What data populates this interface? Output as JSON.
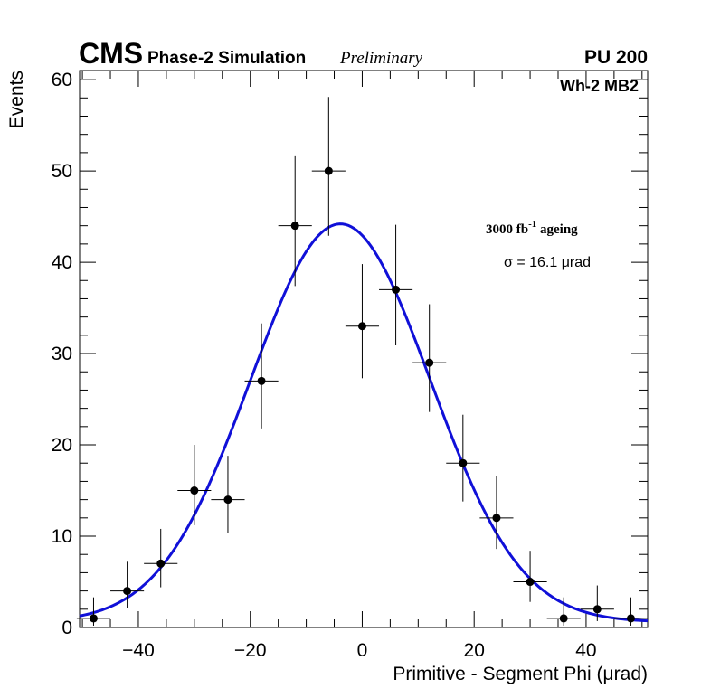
{
  "header": {
    "experiment": "CMS",
    "simulation": "Phase-2 Simulation",
    "status": "Preliminary",
    "pileup": "PU 200"
  },
  "legend": {
    "station": "Wh-2 MB2",
    "ageing_prefix": "3000 fb",
    "ageing_exp": "-1",
    "ageing_suffix": " ageing",
    "sigma_label": "σ = 16.1 μrad"
  },
  "colors": {
    "fit": "#1010d8",
    "points": "#000000"
  },
  "chart_data": {
    "type": "scatter",
    "title": "",
    "xlabel": "Primitive - Segment Phi (μrad)",
    "ylabel": "Events",
    "xlim": [
      -50.5,
      51
    ],
    "ylim": [
      0,
      61
    ],
    "x_ticks": [
      -40,
      -20,
      0,
      20,
      40
    ],
    "x_tick_labels": [
      "−40",
      "−20",
      "0",
      "20",
      "40"
    ],
    "y_ticks": [
      0,
      10,
      20,
      30,
      40,
      50,
      60
    ],
    "y_tick_labels": [
      "0",
      "10",
      "20",
      "30",
      "40",
      "50",
      "60"
    ],
    "bin_half_width": 3,
    "series": [
      {
        "name": "Events",
        "points": [
          {
            "x": -48,
            "y": 1,
            "err_lo": 0.8,
            "err_hi": 2.3
          },
          {
            "x": -42,
            "y": 4,
            "err_lo": 1.9,
            "err_hi": 3.2
          },
          {
            "x": -36,
            "y": 7,
            "err_lo": 2.6,
            "err_hi": 3.8
          },
          {
            "x": -30,
            "y": 15,
            "err_lo": 3.8,
            "err_hi": 5.0
          },
          {
            "x": -24,
            "y": 14,
            "err_lo": 3.7,
            "err_hi": 4.8
          },
          {
            "x": -18,
            "y": 27,
            "err_lo": 5.2,
            "err_hi": 6.3
          },
          {
            "x": -12,
            "y": 44,
            "err_lo": 6.6,
            "err_hi": 7.7
          },
          {
            "x": -6,
            "y": 50,
            "err_lo": 7.1,
            "err_hi": 8.1
          },
          {
            "x": 0,
            "y": 33,
            "err_lo": 5.7,
            "err_hi": 6.8
          },
          {
            "x": 6,
            "y": 37,
            "err_lo": 6.1,
            "err_hi": 7.1
          },
          {
            "x": 12,
            "y": 29,
            "err_lo": 5.4,
            "err_hi": 6.4
          },
          {
            "x": 18,
            "y": 18,
            "err_lo": 4.2,
            "err_hi": 5.3
          },
          {
            "x": 24,
            "y": 12,
            "err_lo": 3.4,
            "err_hi": 4.6
          },
          {
            "x": 30,
            "y": 5,
            "err_lo": 2.2,
            "err_hi": 3.4
          },
          {
            "x": 36,
            "y": 1,
            "err_lo": 0.8,
            "err_hi": 2.3
          },
          {
            "x": 42,
            "y": 2,
            "err_lo": 1.3,
            "err_hi": 2.6
          },
          {
            "x": 48,
            "y": 1,
            "err_lo": 0.8,
            "err_hi": 2.3
          }
        ]
      }
    ],
    "fit": {
      "name": "Gaussian fit",
      "function": "gaussian",
      "amplitude": 43.6,
      "mean": -3.9,
      "sigma": 16.1,
      "baseline": 0.6
    }
  }
}
